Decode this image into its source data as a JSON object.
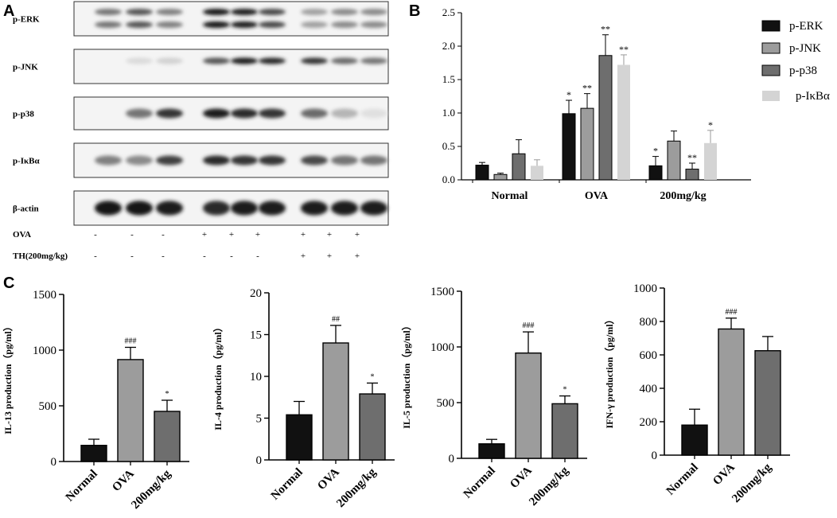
{
  "panels": {
    "a": "A",
    "b": "B",
    "c": "C"
  },
  "blot": {
    "proteins": [
      "p-ERK",
      "p-JNK",
      "p-p38",
      "p-IκBα",
      "β-actin"
    ],
    "ova_label": "OVA",
    "ova_signs": [
      "-",
      "-",
      "-",
      "+",
      "+",
      "+",
      "+",
      "+",
      "+"
    ],
    "th_label": "TH(200mg/kg)",
    "th_signs": [
      "-",
      "-",
      "-",
      "-",
      "-",
      "-",
      "+",
      "+",
      "+"
    ]
  },
  "chart_data": [
    {
      "id": "B",
      "type": "bar",
      "categories": [
        "Normal",
        "OVA",
        "200mg/kg"
      ],
      "ylim": [
        0,
        2.5
      ],
      "yticks": [
        "0.0",
        "0.5",
        "1.0",
        "1.5",
        "2.0",
        "2.5"
      ],
      "legend_position": "right",
      "series": [
        {
          "name": "p-ERK",
          "color": "#111111",
          "values": [
            0.22,
            0.99,
            0.21
          ],
          "errors": [
            0.04,
            0.2,
            0.14
          ],
          "sig": [
            "",
            "*",
            "*"
          ]
        },
        {
          "name": "p-JNK",
          "color": "#9c9c9c",
          "values": [
            0.08,
            1.07,
            0.58
          ],
          "errors": [
            0.02,
            0.22,
            0.15
          ],
          "sig": [
            "",
            "**",
            ""
          ]
        },
        {
          "name": "p-p38",
          "color": "#6e6e6e",
          "values": [
            0.39,
            1.86,
            0.16
          ],
          "errors": [
            0.21,
            0.31,
            0.09
          ],
          "sig": [
            "",
            "**",
            "**"
          ]
        },
        {
          "name": "p-IκBα",
          "color": "#d4d4d4",
          "values": [
            0.21,
            1.72,
            0.55
          ],
          "errors": [
            0.09,
            0.15,
            0.19
          ],
          "sig": [
            "",
            "**",
            "*"
          ]
        }
      ]
    },
    {
      "id": "C1",
      "type": "bar",
      "ylabel": "IL-13 production（pg/ml）",
      "categories": [
        "Normal",
        "OVA",
        "200mg/kg"
      ],
      "ylim": [
        0,
        1500
      ],
      "yticks": [
        "0",
        "500",
        "1000",
        "1500"
      ],
      "colors": [
        "#111111",
        "#9c9c9c",
        "#6e6e6e"
      ],
      "values": [
        145,
        915,
        450
      ],
      "errors": [
        55,
        110,
        100
      ],
      "sig": [
        "",
        "###",
        "*"
      ]
    },
    {
      "id": "C2",
      "type": "bar",
      "ylabel": "IL-4 production（pg/ml）",
      "categories": [
        "Normal",
        "OVA",
        "200mg/kg"
      ],
      "ylim": [
        0,
        20
      ],
      "yticks": [
        "0",
        "5",
        "10",
        "15",
        "20"
      ],
      "colors": [
        "#111111",
        "#9c9c9c",
        "#6e6e6e"
      ],
      "values": [
        5.4,
        14.0,
        7.9
      ],
      "errors": [
        1.6,
        2.1,
        1.3
      ],
      "sig": [
        "",
        "##",
        "*"
      ]
    },
    {
      "id": "C3",
      "type": "bar",
      "ylabel": "IL-5 production（pg/ml）",
      "categories": [
        "Normal",
        "OVA",
        "200mg/kg"
      ],
      "ylim": [
        0,
        1500
      ],
      "yticks": [
        "0",
        "500",
        "1000",
        "1500"
      ],
      "colors": [
        "#111111",
        "#9c9c9c",
        "#6e6e6e"
      ],
      "values": [
        130,
        945,
        490
      ],
      "errors": [
        40,
        190,
        70
      ],
      "sig": [
        "",
        "###",
        "*"
      ]
    },
    {
      "id": "C4",
      "type": "bar",
      "ylabel": "IFN-γ production（pg/ml）",
      "categories": [
        "Normal",
        "OVA",
        "200mg/kg"
      ],
      "ylim": [
        0,
        1000
      ],
      "yticks": [
        "0",
        "200",
        "400",
        "600",
        "800",
        "1000"
      ],
      "colors": [
        "#111111",
        "#9c9c9c",
        "#6e6e6e"
      ],
      "values": [
        180,
        755,
        625
      ],
      "errors": [
        95,
        65,
        85
      ],
      "sig": [
        "",
        "###",
        ""
      ]
    }
  ]
}
